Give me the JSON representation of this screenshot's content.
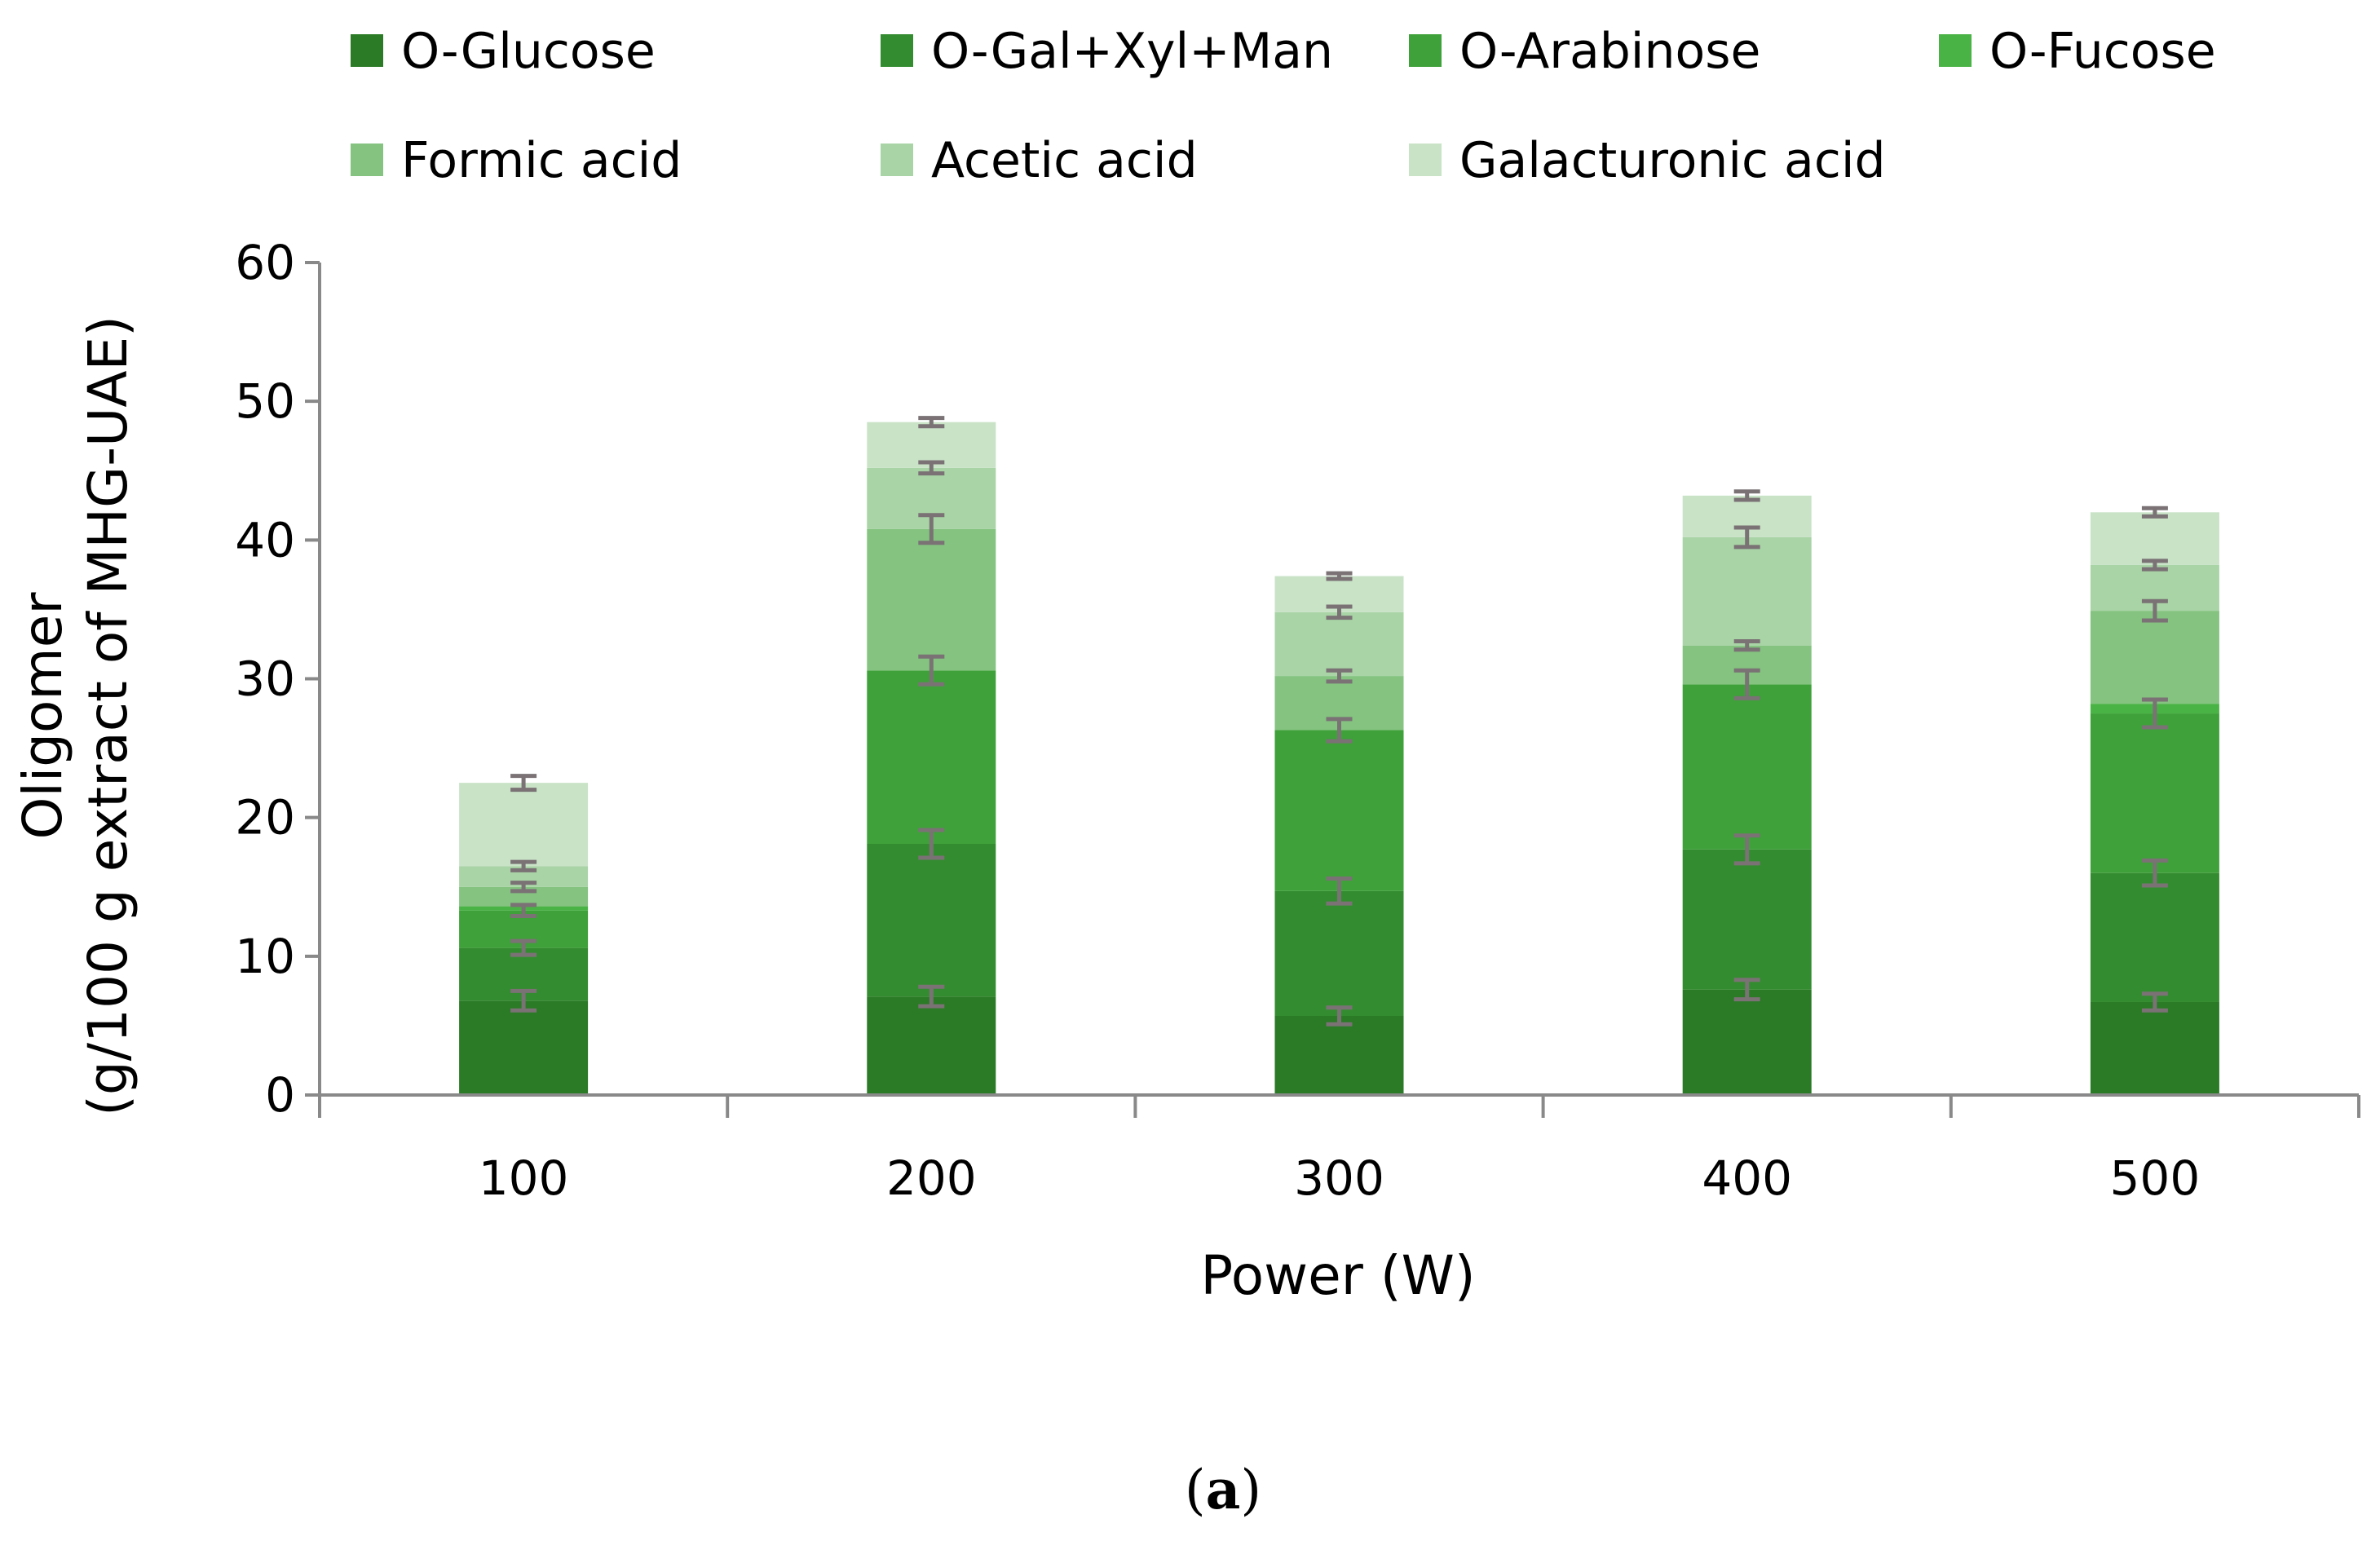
{
  "chart_data": {
    "type": "bar",
    "stacked": true,
    "title": "",
    "xlabel": "Power (W)",
    "ylabel_line1": "Oligomer",
    "ylabel_line2": "(g/100 g extract of MHG-UAE)",
    "ylim": [
      0,
      60
    ],
    "yticks": [
      "0",
      "10",
      "20",
      "30",
      "40",
      "50",
      "60"
    ],
    "categories": [
      "100",
      "200",
      "300",
      "400",
      "500"
    ],
    "legend_position": "top",
    "grid": false,
    "error_bar_color": "#7a7275",
    "series": [
      {
        "name": "O-Glucose",
        "color": "#2a7a26",
        "values": [
          6.8,
          7.1,
          5.7,
          7.6,
          6.7
        ],
        "errors": [
          0.7,
          0.7,
          0.6,
          0.7,
          0.6
        ]
      },
      {
        "name": "O-Gal+Xyl+Man",
        "color": "#348c30",
        "values": [
          3.8,
          11.0,
          9.0,
          10.1,
          9.3
        ],
        "errors": [
          0.5,
          1.0,
          0.9,
          1.0,
          0.9
        ]
      },
      {
        "name": "O-Arabinose",
        "color": "#3fa13a",
        "values": [
          2.7,
          12.5,
          11.6,
          11.9,
          11.5
        ],
        "errors": [
          0.4,
          1.0,
          0.8,
          1.0,
          1.0
        ]
      },
      {
        "name": "O-Fucose",
        "color": "#4ab345",
        "values": [
          0.3,
          0.0,
          0.0,
          0.0,
          0.7
        ],
        "errors": [
          0.0,
          0.0,
          0.0,
          0.0,
          0.0
        ]
      },
      {
        "name": "Formic acid",
        "color": "#84c380",
        "values": [
          1.4,
          10.2,
          3.9,
          2.8,
          6.7
        ],
        "errors": [
          0.3,
          1.0,
          0.4,
          0.3,
          0.7
        ]
      },
      {
        "name": "Acetic acid",
        "color": "#a9d4a6",
        "values": [
          1.5,
          4.4,
          4.6,
          7.8,
          3.3
        ],
        "errors": [
          0.3,
          0.4,
          0.4,
          0.7,
          0.3
        ]
      },
      {
        "name": "Galacturonic acid",
        "color": "#c9e3c7",
        "values": [
          6.0,
          3.3,
          2.6,
          3.0,
          3.8
        ],
        "errors": [
          0.5,
          0.3,
          0.2,
          0.3,
          0.3
        ]
      }
    ],
    "panel_label": "a"
  }
}
